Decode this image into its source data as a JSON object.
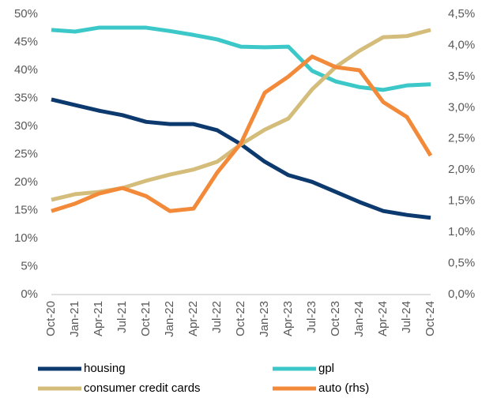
{
  "chart_data": {
    "type": "line",
    "categories": [
      "Oct-20",
      "Jan-21",
      "Apr-21",
      "Jul-21",
      "Oct-21",
      "Jan-22",
      "Apr-22",
      "Jul-22",
      "Oct-22",
      "Jan-23",
      "Apr-23",
      "Jul-23",
      "Oct-23",
      "Jan-24",
      "Apr-24",
      "Jul-24",
      "Oct-24"
    ],
    "series": [
      {
        "name": "housing",
        "color": "#0d3a6e",
        "values": [
          34.8,
          33.8,
          32.8,
          32.0,
          30.8,
          30.4,
          30.4,
          29.3,
          26.8,
          23.7,
          21.3,
          20.1,
          18.3,
          16.5,
          14.9,
          14.2,
          13.7
        ]
      },
      {
        "name": "gpl",
        "color": "#3cc8c8",
        "values": [
          47.2,
          46.9,
          47.6,
          47.6,
          47.6,
          47.0,
          46.3,
          45.5,
          44.2,
          44.1,
          44.2,
          39.9,
          38.0,
          37.0,
          36.5,
          37.3,
          37.5
        ]
      },
      {
        "name": "consumer credit cards",
        "color": "#d4bc7a",
        "values": [
          16.9,
          17.9,
          18.3,
          19.0,
          20.3,
          21.4,
          22.3,
          23.7,
          26.8,
          29.4,
          31.4,
          36.6,
          40.6,
          43.5,
          45.9,
          46.1,
          47.2
        ]
      },
      {
        "name": "auto (rhs)",
        "color": "#f28a3a",
        "axis": "y2",
        "values": [
          1.34,
          1.46,
          1.62,
          1.71,
          1.58,
          1.34,
          1.38,
          1.96,
          2.43,
          3.24,
          3.5,
          3.82,
          3.65,
          3.6,
          3.09,
          2.85,
          2.23
        ]
      }
    ],
    "ylim": [
      0,
      50
    ],
    "yticks": [
      {
        "value": 0,
        "label": "0%"
      },
      {
        "value": 5,
        "label": "5%"
      },
      {
        "value": 10,
        "label": "10%"
      },
      {
        "value": 15,
        "label": "15%"
      },
      {
        "value": 20,
        "label": "20%"
      },
      {
        "value": 25,
        "label": "25%"
      },
      {
        "value": 30,
        "label": "30%"
      },
      {
        "value": 35,
        "label": "35%"
      },
      {
        "value": 40,
        "label": "40%"
      },
      {
        "value": 45,
        "label": "45%"
      },
      {
        "value": 50,
        "label": "50%"
      }
    ],
    "y2lim": [
      0,
      4.5
    ],
    "y2ticks": [
      {
        "value": 0,
        "label": "0,0%"
      },
      {
        "value": 0.5,
        "label": "0,5%"
      },
      {
        "value": 1,
        "label": "1,0%"
      },
      {
        "value": 1.5,
        "label": "1,5%"
      },
      {
        "value": 2,
        "label": "2,0%"
      },
      {
        "value": 2.5,
        "label": "2,5%"
      },
      {
        "value": 3,
        "label": "3,0%"
      },
      {
        "value": 3.5,
        "label": "3,5%"
      },
      {
        "value": 4,
        "label": "4,0%"
      },
      {
        "value": 4.5,
        "label": "4,5%"
      }
    ],
    "grid": false,
    "legend": "bottom"
  }
}
